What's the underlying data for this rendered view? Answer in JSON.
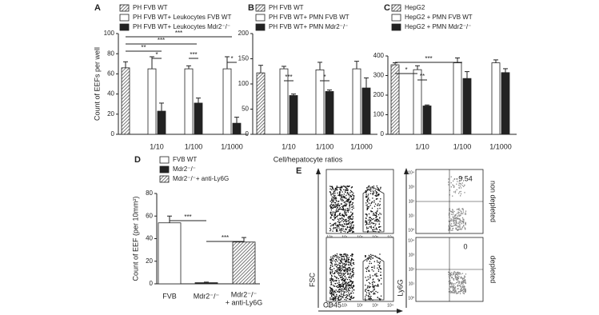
{
  "chart_data": [
    {
      "type": "bar",
      "panel": "A",
      "ylabel": "Count of EEFs per well",
      "categories": [
        null,
        "1/10",
        "1/100",
        "1/1000"
      ],
      "series": [
        {
          "name": "PH FVB WT",
          "color": "#ffffff",
          "hatched": true,
          "values": [
            66,
            null,
            null,
            null
          ],
          "errors": [
            6,
            null,
            null,
            null
          ]
        },
        {
          "name": "PH FVB WT+ Leukocytes FVB WT",
          "color": "#ffffff",
          "values": [
            null,
            65,
            65,
            65
          ],
          "errors": [
            null,
            12,
            3,
            12
          ]
        },
        {
          "name": "PH FVB WT+ Leukocytes Mdr2⁻/⁻",
          "color": "#222222",
          "values": [
            null,
            23,
            31,
            11
          ],
          "errors": [
            null,
            8,
            5,
            6
          ]
        }
      ],
      "ylim": [
        0,
        100
      ],
      "yticks": [
        0,
        20,
        40,
        60,
        80,
        100
      ],
      "annotations": [
        "***",
        "***",
        "**",
        "*",
        "***",
        "*"
      ]
    },
    {
      "type": "bar",
      "panel": "B",
      "xlabel": "Cell/hepatocyte ratios",
      "categories": [
        null,
        "1/10",
        "1/100",
        "1/1000"
      ],
      "series": [
        {
          "name": "PH FVB WT",
          "color": "#ffffff",
          "hatched": true,
          "values": [
            122,
            null,
            null,
            null
          ],
          "errors": [
            15,
            null,
            null,
            null
          ]
        },
        {
          "name": "PH FVB WT+ PMN FVB WT",
          "color": "#ffffff",
          "values": [
            null,
            130,
            128,
            130
          ],
          "errors": [
            null,
            5,
            15,
            15
          ]
        },
        {
          "name": "PH FVB WT+ PMN Mdr2⁻/⁻",
          "color": "#222222",
          "values": [
            null,
            77,
            85,
            92
          ],
          "errors": [
            null,
            3,
            3,
            20
          ]
        }
      ],
      "ylim": [
        0,
        200
      ],
      "yticks": [
        0,
        50,
        100,
        150,
        200
      ],
      "annotations": [
        "***",
        "*"
      ]
    },
    {
      "type": "bar",
      "panel": "C",
      "categories": [
        null,
        "1/10",
        "1/100",
        "1/1000"
      ],
      "series": [
        {
          "name": "HepG2",
          "color": "#ffffff",
          "hatched": true,
          "values": [
            355,
            null,
            null,
            null
          ],
          "errors": [
            10,
            null,
            null,
            null
          ]
        },
        {
          "name": "HepG2 + PMN FVB WT",
          "color": "#ffffff",
          "values": [
            null,
            330,
            365,
            365
          ],
          "errors": [
            null,
            20,
            25,
            15
          ]
        },
        {
          "name": "HepG2 + PMN Mdr2⁻/⁻",
          "color": "#222222",
          "values": [
            null,
            145,
            285,
            315
          ],
          "errors": [
            null,
            5,
            35,
            20
          ]
        }
      ],
      "ylim": [
        0,
        400
      ],
      "yticks": [
        0,
        100,
        200,
        300,
        400
      ],
      "annotations": [
        "***",
        "*",
        "**"
      ]
    },
    {
      "type": "bar",
      "panel": "D",
      "ylabel": "Count of EEF (per 10mm²)",
      "categories": [
        "FVB",
        "Mdr2⁻/⁻",
        [
          "Mdr2⁻/⁻",
          "+ anti-Ly6G"
        ]
      ],
      "series": [
        {
          "name": "FVB WT",
          "color": "#ffffff",
          "values": [
            54,
            null,
            null
          ],
          "errors": [
            6,
            null,
            null
          ]
        },
        {
          "name": "Mdr2⁻/⁻",
          "color": "#222222",
          "values": [
            null,
            1,
            null
          ],
          "errors": [
            null,
            0.5,
            null
          ]
        },
        {
          "name": "Mdr2⁻/⁻+ anti-Ly6G",
          "color": "#ffffff",
          "hatched": true,
          "values": [
            null,
            null,
            37
          ],
          "errors": [
            null,
            null,
            4
          ]
        }
      ],
      "ylim": [
        0,
        80
      ],
      "yticks": [
        0,
        20,
        40,
        60,
        80
      ],
      "annotations": [
        "***",
        "***"
      ]
    }
  ],
  "flow_panel": {
    "panel": "E",
    "x_label": "CD45",
    "y_label_left": "FSC",
    "y_label_right": "Ly6G",
    "row_labels": [
      "non depleted",
      "depleted"
    ],
    "percentages": [
      "9.54",
      "0"
    ],
    "ticks": [
      "10⁰",
      "10¹",
      "10²",
      "10³",
      "10⁴"
    ]
  }
}
